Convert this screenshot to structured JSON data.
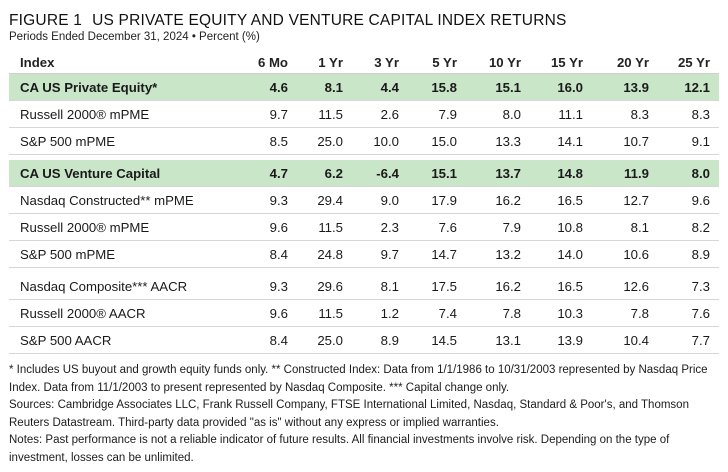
{
  "figure": {
    "number": "FIGURE 1",
    "title": "US PRIVATE EQUITY AND VENTURE CAPITAL INDEX RETURNS",
    "subtitle": "Periods Ended December 31, 2024 • Percent (%)"
  },
  "table": {
    "headers": [
      "Index",
      "6 Mo",
      "1 Yr",
      "3 Yr",
      "5 Yr",
      "10 Yr",
      "15 Yr",
      "20 Yr",
      "25 Yr"
    ],
    "groups": [
      {
        "rows": [
          {
            "name": "CA US Private Equity*",
            "highlight": true,
            "values": [
              "4.6",
              "8.1",
              "4.4",
              "15.8",
              "15.1",
              "16.0",
              "13.9",
              "12.1"
            ]
          },
          {
            "name": "Russell 2000® mPME",
            "highlight": false,
            "values": [
              "9.7",
              "11.5",
              "2.6",
              "7.9",
              "8.0",
              "11.1",
              "8.3",
              "8.3"
            ]
          },
          {
            "name": "S&P 500 mPME",
            "highlight": false,
            "values": [
              "8.5",
              "25.0",
              "10.0",
              "15.0",
              "13.3",
              "14.1",
              "10.7",
              "9.1"
            ]
          }
        ]
      },
      {
        "rows": [
          {
            "name": "CA US Venture Capital",
            "highlight": true,
            "values": [
              "4.7",
              "6.2",
              "-6.4",
              "15.1",
              "13.7",
              "14.8",
              "11.9",
              "8.0"
            ]
          },
          {
            "name": "Nasdaq Constructed** mPME",
            "highlight": false,
            "values": [
              "9.3",
              "29.4",
              "9.0",
              "17.9",
              "16.2",
              "16.5",
              "12.7",
              "9.6"
            ]
          },
          {
            "name": "Russell 2000® mPME",
            "highlight": false,
            "values": [
              "9.6",
              "11.5",
              "2.3",
              "7.6",
              "7.9",
              "10.8",
              "8.1",
              "8.2"
            ]
          },
          {
            "name": "S&P 500 mPME",
            "highlight": false,
            "values": [
              "8.4",
              "24.8",
              "9.7",
              "14.7",
              "13.2",
              "14.0",
              "10.6",
              "8.9"
            ]
          }
        ]
      },
      {
        "rows": [
          {
            "name": "Nasdaq Composite*** AACR",
            "highlight": false,
            "values": [
              "9.3",
              "29.6",
              "8.1",
              "17.5",
              "16.2",
              "16.5",
              "12.6",
              "7.3"
            ]
          },
          {
            "name": "Russell 2000® AACR",
            "highlight": false,
            "values": [
              "9.6",
              "11.5",
              "1.2",
              "7.4",
              "7.8",
              "10.3",
              "7.8",
              "7.6"
            ]
          },
          {
            "name": "S&P 500 AACR",
            "highlight": false,
            "values": [
              "8.4",
              "25.0",
              "8.9",
              "14.5",
              "13.1",
              "13.9",
              "10.4",
              "7.7"
            ]
          }
        ]
      }
    ]
  },
  "notes": {
    "footnote": "* Includes US buyout and growth equity funds only. ** Constructed Index: Data from 1/1/1986 to 10/31/2003 represented by Nasdaq Price Index. Data from 11/1/2003 to present represented by Nasdaq Composite. *** Capital change only.",
    "sources": "Sources: Cambridge Associates LLC, Frank Russell Company, FTSE International Limited, Nasdaq, Standard & Poor's, and Thomson Reuters Datastream. Third-party data provided \"as is\" without any express or implied warranties.",
    "disclaimer": "Notes: Past performance is not a reliable indicator of future results. All financial investments involve risk. Depending on the type of investment, losses can be unlimited."
  }
}
